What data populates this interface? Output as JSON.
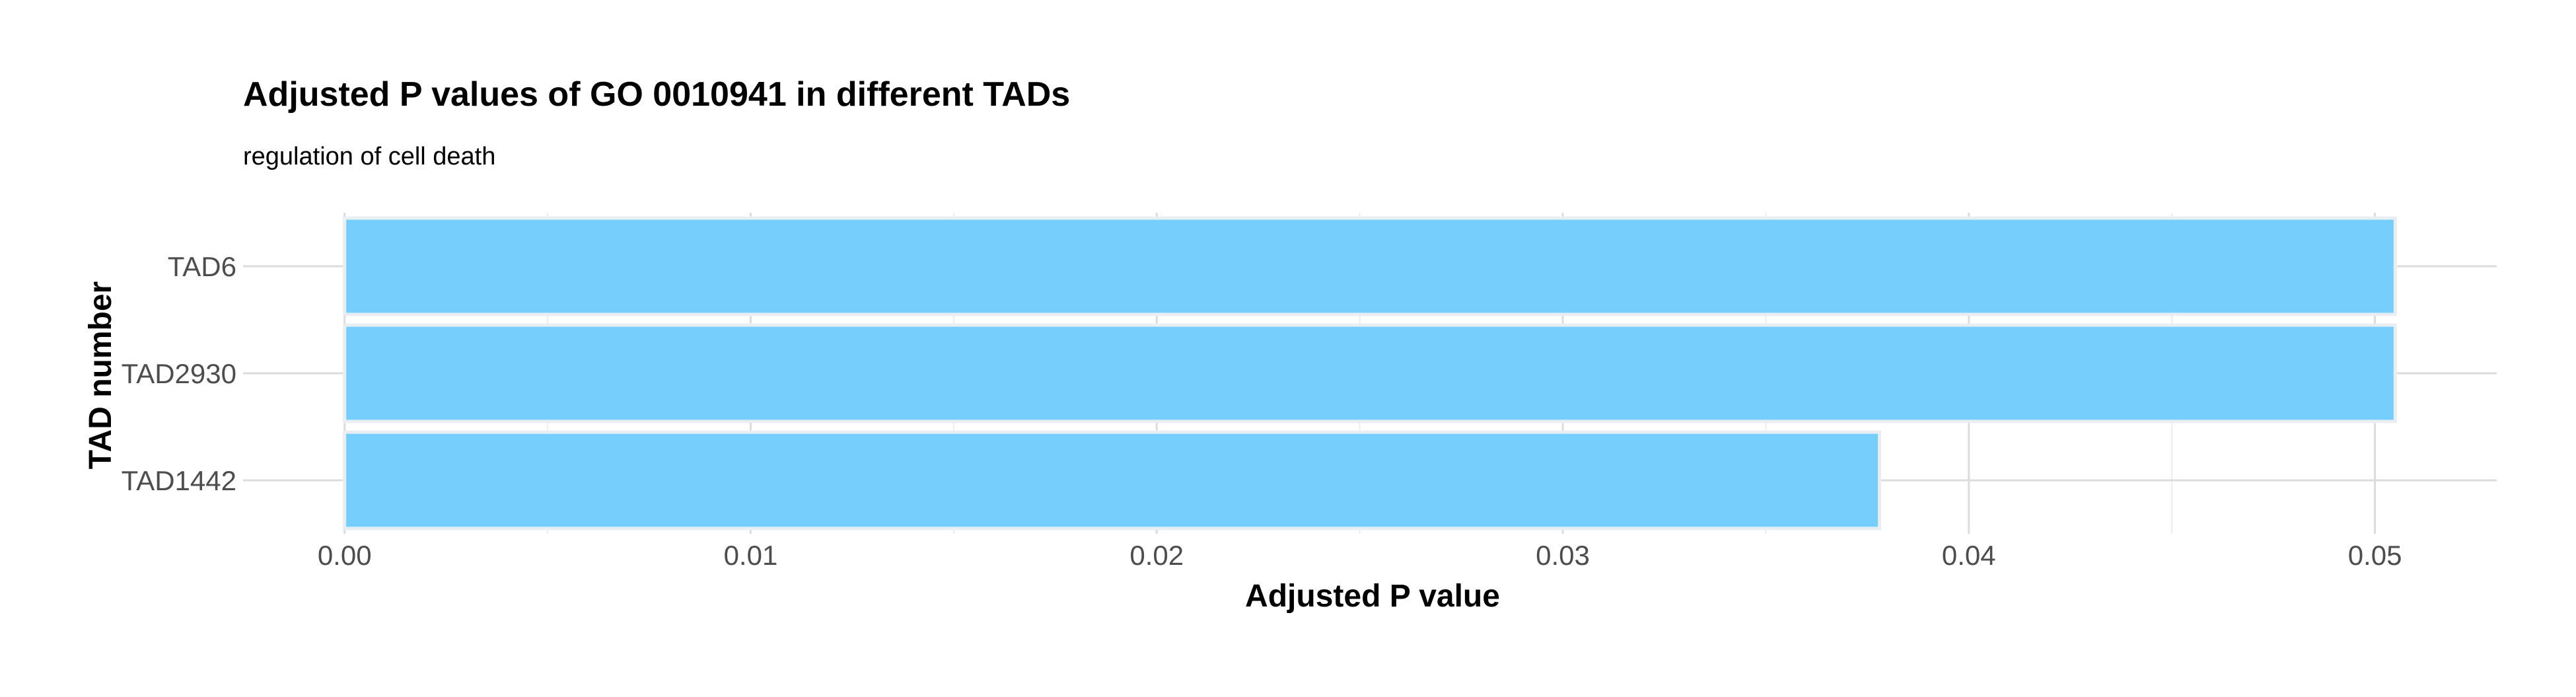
{
  "chart_data": {
    "type": "bar",
    "orientation": "horizontal",
    "title": "Adjusted P values of GO 0010941 in different TADs",
    "subtitle": "regulation of cell death",
    "xlabel": "Adjusted P value",
    "ylabel": "TAD number",
    "categories": [
      "TAD6",
      "TAD2930",
      "TAD1442"
    ],
    "values": [
      0.0505,
      0.0505,
      0.0378
    ],
    "xlim": [
      -0.0025,
      0.053
    ],
    "x_ticks": [
      0.0,
      0.01,
      0.02,
      0.03,
      0.04,
      0.05
    ],
    "x_tick_labels": [
      "0.00",
      "0.01",
      "0.02",
      "0.03",
      "0.04",
      "0.05"
    ],
    "grid": true,
    "legend": "none",
    "bar_color": "#75CEFB",
    "bar_outline_color": "#E8EEF2"
  }
}
